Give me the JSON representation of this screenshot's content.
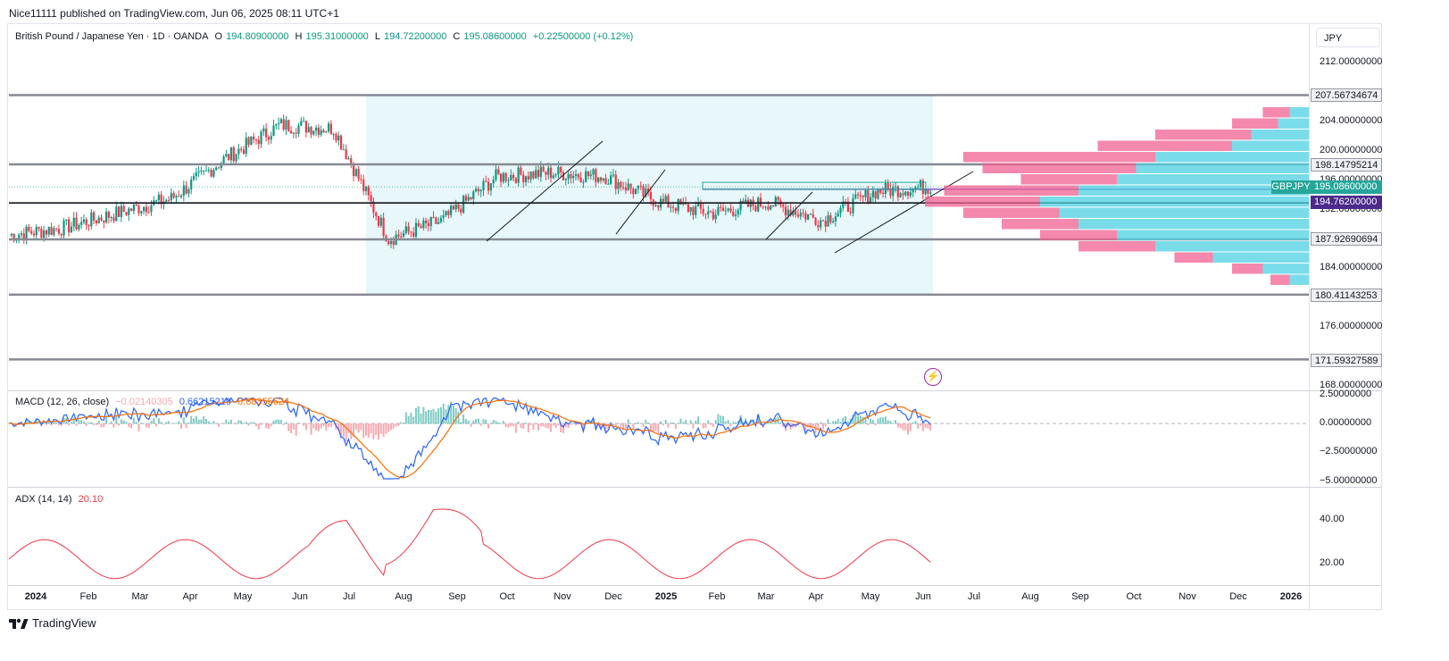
{
  "header": {
    "published": "Nice11111 published on TradingView.com, Jun 06, 2025 08:11 UTC+1"
  },
  "legend": {
    "symbol": "British Pound / Japanese Yen · 1D · OANDA",
    "open_label": "O",
    "open": "194.80900000",
    "high_label": "H",
    "high": "195.31000000",
    "low_label": "L",
    "low": "194.72200000",
    "close_label": "C",
    "close": "195.08600000",
    "change": "+0.22500000 (+0.12%)"
  },
  "currency": "JPY",
  "price_axis": {
    "ticks": [
      "212.00000000",
      "204.00000000",
      "200.00000000",
      "196.00000000",
      "192.00000000",
      "184.00000000",
      "176.00000000",
      "168.00000000"
    ],
    "boxes": {
      "level_207": "207.56734674",
      "level_198": "198.14795214",
      "last_price": "195.08600000",
      "purple_level": "194.76200000",
      "level_187": "187.92690694",
      "level_180": "180.41143253",
      "level_171": "171.59327589"
    },
    "symbol_tag": "GBPJPY"
  },
  "macd": {
    "title": "MACD (12, 26, close)",
    "hist": "−0.02140305",
    "macd": "0.66215219",
    "signal": "0.68355524",
    "ticks": [
      "2.50000000",
      "0.00000000",
      "−2.50000000",
      "−5.00000000"
    ]
  },
  "adx": {
    "title": "ADX (14, 14)",
    "value": "20.10",
    "ticks": [
      "40.00",
      "20.00"
    ]
  },
  "time_axis": {
    "labels": [
      "2024",
      "Feb",
      "Mar",
      "Apr",
      "May",
      "Jun",
      "Jul",
      "Aug",
      "Sep",
      "Oct",
      "Nov",
      "Dec",
      "2025",
      "Feb",
      "Mar",
      "Apr",
      "May",
      "Jun",
      "Jul",
      "Aug",
      "Sep",
      "Oct",
      "Nov",
      "Dec",
      "2026"
    ]
  },
  "branding": "TradingView",
  "colors": {
    "up": "#089981",
    "down": "#f23645",
    "macd_line": "#2962ff",
    "signal_line": "#ff6d00",
    "adx_line": "#f23645",
    "range_shade": "#e8f7fa",
    "purple": "#7e57c2"
  },
  "chart_data": {
    "type": "candlestick",
    "symbol": "GBPJPY",
    "timeframe": "1D",
    "horizontal_levels": [
      207.56734674,
      198.14795214,
      194.762,
      187.9269069,
      180.41143253,
      171.59327589
    ],
    "ohlc_last": {
      "open": 194.809,
      "high": 195.31,
      "low": 194.722,
      "close": 195.086
    },
    "approx_monthly_close": [
      {
        "x": "2024-01",
        "y": 188.5
      },
      {
        "x": "2024-02",
        "y": 189.5
      },
      {
        "x": "2024-03",
        "y": 191.5
      },
      {
        "x": "2024-04",
        "y": 193.5
      },
      {
        "x": "2024-05",
        "y": 199.0
      },
      {
        "x": "2024-06",
        "y": 203.5
      },
      {
        "x": "2024-07",
        "y": 203.0
      },
      {
        "x": "2024-08",
        "y": 188.0
      },
      {
        "x": "2024-09",
        "y": 190.5
      },
      {
        "x": "2024-10",
        "y": 196.5
      },
      {
        "x": "2024-11",
        "y": 197.0
      },
      {
        "x": "2024-12",
        "y": 196.5
      },
      {
        "x": "2025-01",
        "y": 193.0
      },
      {
        "x": "2025-02",
        "y": 191.5
      },
      {
        "x": "2025-03",
        "y": 193.0
      },
      {
        "x": "2025-04",
        "y": 190.5
      },
      {
        "x": "2025-05",
        "y": 194.5
      },
      {
        "x": "2025-06",
        "y": 195.1
      }
    ],
    "ylim": [
      166,
      214
    ],
    "macd_ylim": [
      -5.5,
      2.8
    ],
    "adx_ylim": [
      10,
      55
    ]
  }
}
